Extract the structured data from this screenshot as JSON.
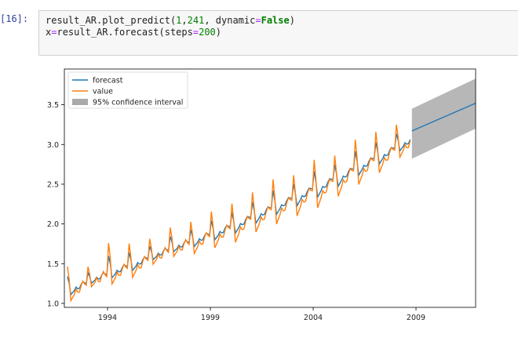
{
  "cell": {
    "prompt": "[16]:",
    "line1": {
      "obj": "result_AR.plot_predict(",
      "a1": "1",
      "comma1": ",",
      "a2": "241",
      "comma2": ", dynamic",
      "eq": "=",
      "kw": "False",
      "close": ")"
    },
    "line2": {
      "lhs": "x",
      "eq": "=",
      "call": "result_AR.forecast(steps",
      "eq2": "=",
      "num": "200",
      "close": ")"
    }
  },
  "chart_data": {
    "type": "line",
    "title": "",
    "xlabel": "",
    "ylabel": "",
    "xlim": [
      1991.9,
      2011.9
    ],
    "ylim": [
      0.95,
      3.95
    ],
    "x_ticks": [
      1994,
      1999,
      2004,
      2009
    ],
    "y_ticks": [
      1.0,
      1.5,
      2.0,
      2.5,
      3.0,
      3.5
    ],
    "y_tick_labels": [
      "1.0",
      "1.5",
      "2.0",
      "2.5",
      "3.0",
      "3.5"
    ],
    "legend": {
      "position": "top-left",
      "entries": [
        {
          "label": "forecast",
          "color": "#1f77b4",
          "kind": "line"
        },
        {
          "label": "value",
          "color": "#ff7f0e",
          "kind": "line"
        },
        {
          "label": "95% confidence interval",
          "color": "#aaaaaa",
          "kind": "patch"
        }
      ]
    },
    "series": [
      {
        "name": "value",
        "color": "#ff7f0e",
        "sampling": "monthly, Feb 1992 – Oct 2008, seasonal peak each January",
        "trend_points": [
          [
            1992.0,
            1.18
          ],
          [
            1995.0,
            1.5
          ],
          [
            2000.0,
            2.0
          ],
          [
            2005.0,
            2.6
          ],
          [
            2008.7,
            3.08
          ]
        ],
        "annual_peaks": [
          [
            1992.2,
            1.63
          ],
          [
            1993.2,
            1.55
          ],
          [
            1994.0,
            1.98
          ],
          [
            1995.0,
            1.9
          ],
          [
            1996.0,
            1.93
          ],
          [
            1997.0,
            2.1
          ],
          [
            1998.0,
            2.15
          ],
          [
            1999.0,
            2.3
          ],
          [
            2000.0,
            2.4
          ],
          [
            2001.0,
            2.55
          ],
          [
            2002.0,
            2.75
          ],
          [
            2003.0,
            2.75
          ],
          [
            2004.0,
            3.0
          ],
          [
            2005.0,
            3.0
          ],
          [
            2006.0,
            3.25
          ],
          [
            2007.0,
            3.33
          ],
          [
            2008.0,
            3.4
          ]
        ],
        "annual_troughs": [
          [
            1992.4,
            1.04
          ],
          [
            1993.4,
            1.22
          ],
          [
            1994.4,
            1.25
          ],
          [
            1995.4,
            1.33
          ],
          [
            1996.4,
            1.5
          ],
          [
            1997.4,
            1.6
          ],
          [
            1998.4,
            1.63
          ],
          [
            1999.4,
            1.7
          ],
          [
            2000.4,
            1.77
          ],
          [
            2001.4,
            1.9
          ],
          [
            2002.4,
            2.0
          ],
          [
            2003.4,
            2.1
          ],
          [
            2004.4,
            2.2
          ],
          [
            2005.4,
            2.35
          ],
          [
            2006.4,
            2.5
          ],
          [
            2007.4,
            2.65
          ],
          [
            2008.4,
            2.85
          ]
        ]
      },
      {
        "name": "forecast",
        "color": "#1f77b4",
        "in_sample": "smoothed version of value, Feb 1992 – Oct 2008",
        "out_of_sample_points": [
          [
            2008.8,
            3.17
          ],
          [
            2011.9,
            3.52
          ]
        ]
      }
    ],
    "confidence_interval": {
      "label": "95% confidence interval",
      "color": "#aaaaaa",
      "x": [
        2008.8,
        2011.9
      ],
      "lower": [
        2.82,
        3.2
      ],
      "upper": [
        3.45,
        3.83
      ]
    }
  }
}
